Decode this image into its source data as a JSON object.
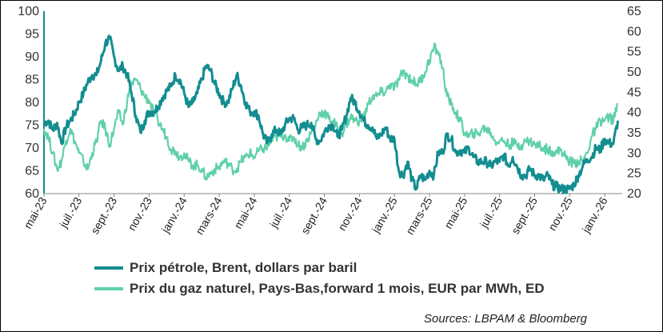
{
  "chart_data": {
    "type": "line",
    "title": "",
    "x_labels": [
      "mai-23",
      "juil.-23",
      "sept.-23",
      "nov.-23",
      "janv.-24",
      "mars-24",
      "mai-24",
      "juil.-24",
      "sept.-24",
      "nov.-24",
      "janv.-25",
      "mars-25",
      "mai-25",
      "juil.-25",
      "sept.-25",
      "nov.-25",
      "janv.-26"
    ],
    "y_left": {
      "min": 60,
      "max": 100,
      "ticks": [
        "60",
        "65",
        "70",
        "75",
        "80",
        "85",
        "90",
        "95",
        "100"
      ]
    },
    "y_right": {
      "min": 20,
      "max": 65,
      "ticks": [
        "20",
        "25",
        "30",
        "35",
        "40",
        "45",
        "50",
        "55",
        "60",
        "65"
      ]
    },
    "series": [
      {
        "name": "Prix pétrole, Brent, dollars par baril",
        "axis": "left",
        "color": "#138d90",
        "points": [
          [
            0,
            75.5
          ],
          [
            0.25,
            76
          ],
          [
            0.5,
            74
          ],
          [
            0.75,
            75.5
          ],
          [
            1,
            71
          ],
          [
            1.25,
            74.5
          ],
          [
            1.5,
            76
          ],
          [
            1.75,
            77.5
          ],
          [
            2,
            80
          ],
          [
            2.25,
            82
          ],
          [
            2.5,
            84.5
          ],
          [
            2.75,
            86
          ],
          [
            3,
            86
          ],
          [
            3.25,
            89
          ],
          [
            3.5,
            93
          ],
          [
            3.75,
            94
          ],
          [
            4,
            90
          ],
          [
            4.25,
            87
          ],
          [
            4.5,
            88
          ],
          [
            4.75,
            86
          ],
          [
            5,
            82
          ],
          [
            5.25,
            77
          ],
          [
            5.5,
            73.5
          ],
          [
            5.75,
            76
          ],
          [
            6,
            78
          ],
          [
            6.25,
            78
          ],
          [
            6.5,
            79
          ],
          [
            6.75,
            81
          ],
          [
            7,
            82.5
          ],
          [
            7.25,
            83.5
          ],
          [
            7.5,
            86
          ],
          [
            7.75,
            85
          ],
          [
            8,
            82
          ],
          [
            8.25,
            79
          ],
          [
            8.5,
            80
          ],
          [
            8.75,
            82
          ],
          [
            9,
            85
          ],
          [
            9.25,
            88
          ],
          [
            9.5,
            87
          ],
          [
            9.75,
            84
          ],
          [
            10,
            82
          ],
          [
            10.25,
            80
          ],
          [
            10.5,
            80
          ],
          [
            10.75,
            83
          ],
          [
            11,
            86
          ],
          [
            11.25,
            83.5
          ],
          [
            11.5,
            80
          ],
          [
            11.75,
            78
          ],
          [
            12,
            78
          ],
          [
            12.25,
            77
          ],
          [
            12.5,
            73
          ],
          [
            12.75,
            71
          ],
          [
            13,
            73
          ],
          [
            13.25,
            74
          ],
          [
            13.5,
            73
          ],
          [
            13.75,
            75
          ],
          [
            14,
            76.5
          ],
          [
            14.25,
            76.5
          ],
          [
            14.5,
            74
          ],
          [
            14.75,
            74.5
          ],
          [
            15,
            75
          ],
          [
            15.25,
            75.5
          ],
          [
            15.5,
            72
          ],
          [
            15.75,
            71.5
          ],
          [
            16,
            73.5
          ],
          [
            16.25,
            75
          ],
          [
            16.5,
            75
          ],
          [
            16.75,
            72.5
          ],
          [
            17,
            74
          ],
          [
            17.25,
            77
          ],
          [
            17.5,
            81
          ],
          [
            17.75,
            80
          ],
          [
            18,
            78
          ],
          [
            18.25,
            76
          ],
          [
            18.5,
            75
          ],
          [
            18.75,
            74.5
          ],
          [
            19,
            72
          ],
          [
            19.25,
            73
          ],
          [
            19.5,
            74.5
          ],
          [
            19.75,
            72
          ],
          [
            20,
            72
          ],
          [
            20.25,
            65
          ],
          [
            20.5,
            64
          ],
          [
            20.75,
            67
          ],
          [
            21,
            63
          ],
          [
            21.25,
            61
          ],
          [
            21.5,
            64
          ],
          [
            21.75,
            63
          ],
          [
            22,
            65
          ],
          [
            22.25,
            64
          ],
          [
            22.5,
            69
          ],
          [
            22.75,
            69
          ],
          [
            23,
            73
          ],
          [
            23.25,
            72
          ],
          [
            23.5,
            69
          ],
          [
            23.75,
            69.5
          ],
          [
            24,
            69
          ],
          [
            24.25,
            70
          ],
          [
            24.5,
            68
          ],
          [
            24.75,
            67
          ],
          [
            25,
            67
          ],
          [
            25.25,
            67
          ],
          [
            25.5,
            66
          ],
          [
            25.75,
            67
          ],
          [
            26,
            67
          ],
          [
            26.25,
            68.5
          ],
          [
            26.5,
            66
          ],
          [
            26.75,
            68
          ],
          [
            27,
            66
          ],
          [
            27.25,
            64
          ],
          [
            27.5,
            64
          ],
          [
            27.75,
            65.5
          ],
          [
            28,
            64
          ],
          [
            28.25,
            64
          ],
          [
            28.5,
            63
          ],
          [
            28.75,
            64
          ],
          [
            29,
            62
          ],
          [
            29.25,
            61.5
          ],
          [
            29.5,
            61
          ],
          [
            29.75,
            61
          ],
          [
            30,
            61
          ],
          [
            30.25,
            62
          ],
          [
            30.5,
            64
          ],
          [
            30.75,
            66
          ],
          [
            31,
            67.5
          ],
          [
            31.25,
            68
          ],
          [
            31.5,
            70
          ],
          [
            31.75,
            69.5
          ],
          [
            32,
            72
          ],
          [
            32.25,
            71
          ],
          [
            32.5,
            71
          ],
          [
            32.75,
            76
          ]
        ]
      },
      {
        "name": "Prix du gaz naturel, Pays-Bas,forward 1 mois, EUR par MWh, ED",
        "axis": "right",
        "color": "#5fd0aa",
        "points": [
          [
            0,
            36
          ],
          [
            0.25,
            34
          ],
          [
            0.5,
            30
          ],
          [
            0.75,
            26
          ],
          [
            1,
            28
          ],
          [
            1.25,
            33
          ],
          [
            1.5,
            36
          ],
          [
            1.75,
            33
          ],
          [
            2,
            30
          ],
          [
            2.25,
            28
          ],
          [
            2.5,
            26
          ],
          [
            2.75,
            30
          ],
          [
            3,
            33
          ],
          [
            3.25,
            38
          ],
          [
            3.5,
            36
          ],
          [
            3.75,
            32
          ],
          [
            4,
            36
          ],
          [
            4.25,
            40
          ],
          [
            4.5,
            37
          ],
          [
            4.75,
            43
          ],
          [
            5,
            47
          ],
          [
            5.25,
            48
          ],
          [
            5.5,
            46
          ],
          [
            5.75,
            44
          ],
          [
            6,
            43
          ],
          [
            6.25,
            40
          ],
          [
            6.5,
            38
          ],
          [
            6.75,
            36
          ],
          [
            7,
            34
          ],
          [
            7.25,
            31
          ],
          [
            7.5,
            30.5
          ],
          [
            7.75,
            29
          ],
          [
            8,
            30
          ],
          [
            8.25,
            28
          ],
          [
            8.5,
            27
          ],
          [
            8.75,
            27
          ],
          [
            9,
            26
          ],
          [
            9.25,
            24
          ],
          [
            9.5,
            25
          ],
          [
            9.75,
            26
          ],
          [
            10,
            26.5
          ],
          [
            10.25,
            28
          ],
          [
            10.5,
            27.5
          ],
          [
            10.75,
            26
          ],
          [
            11,
            26
          ],
          [
            11.25,
            28
          ],
          [
            11.5,
            29
          ],
          [
            11.75,
            30
          ],
          [
            12,
            29
          ],
          [
            12.25,
            30.5
          ],
          [
            12.5,
            31
          ],
          [
            12.75,
            31.5
          ],
          [
            13,
            33
          ],
          [
            13.25,
            34
          ],
          [
            13.5,
            34
          ],
          [
            13.75,
            34.5
          ],
          [
            14,
            33
          ],
          [
            14.25,
            34
          ],
          [
            14.5,
            32
          ],
          [
            14.75,
            31.5
          ],
          [
            15,
            33
          ],
          [
            15.25,
            35
          ],
          [
            15.5,
            37
          ],
          [
            15.75,
            40
          ],
          [
            16,
            40
          ],
          [
            16.25,
            38.5
          ],
          [
            16.5,
            38
          ],
          [
            16.75,
            36
          ],
          [
            17,
            35
          ],
          [
            17.25,
            37
          ],
          [
            17.5,
            39
          ],
          [
            17.75,
            38
          ],
          [
            18,
            38
          ],
          [
            18.25,
            39
          ],
          [
            18.5,
            42
          ],
          [
            18.75,
            44
          ],
          [
            19,
            44
          ],
          [
            19.25,
            45
          ],
          [
            19.5,
            45
          ],
          [
            19.75,
            47
          ],
          [
            20,
            46
          ],
          [
            20.25,
            48
          ],
          [
            20.5,
            50
          ],
          [
            20.75,
            49
          ],
          [
            21,
            48
          ],
          [
            21.25,
            47
          ],
          [
            21.5,
            48
          ],
          [
            21.75,
            50
          ],
          [
            22,
            53
          ],
          [
            22.25,
            56
          ],
          [
            22.5,
            55
          ],
          [
            22.75,
            51
          ],
          [
            23,
            44
          ],
          [
            23.25,
            42
          ],
          [
            23.5,
            40
          ],
          [
            23.75,
            38
          ],
          [
            24,
            35
          ],
          [
            24.25,
            34
          ],
          [
            24.5,
            35
          ],
          [
            24.75,
            34.5
          ],
          [
            25,
            36
          ],
          [
            25.25,
            36
          ],
          [
            25.5,
            35
          ],
          [
            25.75,
            33
          ],
          [
            26,
            33
          ],
          [
            26.25,
            33
          ],
          [
            26.5,
            32
          ],
          [
            26.75,
            32.5
          ],
          [
            27,
            32
          ],
          [
            27.25,
            32
          ],
          [
            27.5,
            33
          ],
          [
            27.75,
            33
          ],
          [
            28,
            32
          ],
          [
            28.25,
            32
          ],
          [
            28.5,
            31
          ],
          [
            28.75,
            31
          ],
          [
            29,
            30.5
          ],
          [
            29.25,
            30
          ],
          [
            29.5,
            31
          ],
          [
            29.75,
            29
          ],
          [
            30,
            28
          ],
          [
            30.25,
            27.5
          ],
          [
            30.5,
            28
          ],
          [
            30.75,
            28
          ],
          [
            31,
            30
          ],
          [
            31.25,
            34
          ],
          [
            31.5,
            36
          ],
          [
            31.75,
            38
          ],
          [
            32,
            38
          ],
          [
            32.25,
            39
          ],
          [
            32.5,
            38
          ],
          [
            32.75,
            42
          ]
        ]
      }
    ],
    "legend": "bottom",
    "grid": false
  },
  "source_text": "Sources: LBPAM & Bloomberg"
}
